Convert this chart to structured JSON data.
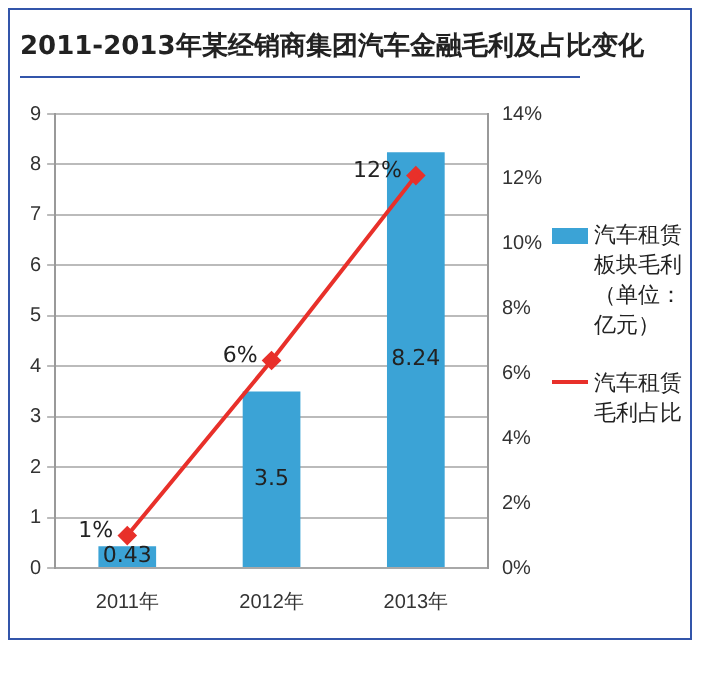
{
  "chart_data": {
    "type": "bar",
    "title": "2011-2013年某经销商集团汽车金融毛利及占比变化",
    "categories": [
      "2011年",
      "2012年",
      "2013年"
    ],
    "series": [
      {
        "name": "汽车租赁板块毛利（单位：亿元）",
        "color": "#3ba3d6",
        "values": [
          0.43,
          3.5,
          8.24
        ],
        "value_labels": [
          "0.43",
          "3.5",
          "8.24"
        ]
      },
      {
        "name": "汽车租赁毛利占比",
        "type": "line",
        "axis": "y2",
        "color": "#e8302a",
        "values": [
          1,
          6.4,
          12.1
        ],
        "value_labels": [
          "1%",
          "6%",
          "12%"
        ]
      }
    ],
    "ylim": [
      0,
      9
    ],
    "yticks": [
      0,
      1,
      2,
      3,
      4,
      5,
      6,
      7,
      8,
      9
    ],
    "y2lim": [
      0,
      14
    ],
    "y2ticks": [
      {
        "value": 0,
        "label": "0%"
      },
      {
        "value": 2,
        "label": "2%"
      },
      {
        "value": 4,
        "label": "4%"
      },
      {
        "value": 6,
        "label": "6%"
      },
      {
        "value": 8,
        "label": "8%"
      },
      {
        "value": 10,
        "label": "10%"
      },
      {
        "value": 12,
        "label": "12%"
      },
      {
        "value": 14,
        "label": "14%"
      }
    ],
    "grid": "y",
    "legend": "right",
    "marker": "diamond",
    "line_style": "solid"
  }
}
